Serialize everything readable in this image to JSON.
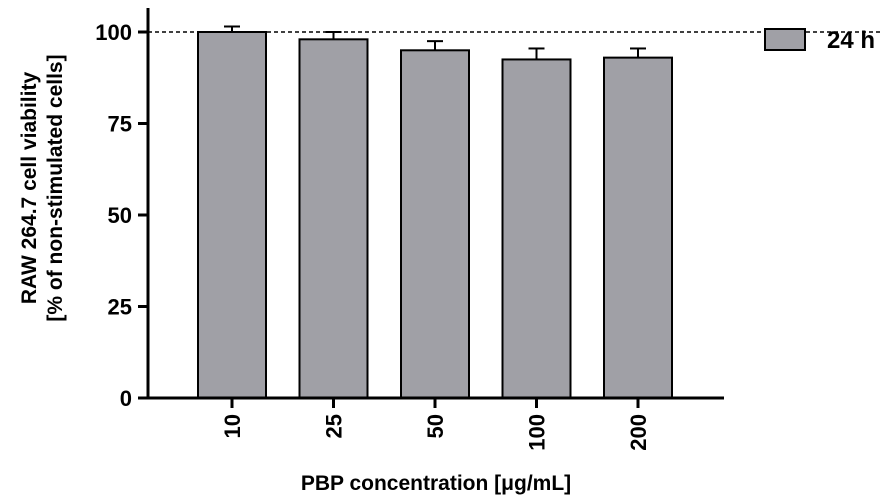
{
  "chart_data": {
    "type": "bar",
    "categories": [
      "10",
      "25",
      "50",
      "100",
      "200"
    ],
    "series": [
      {
        "name": "24 h",
        "values": [
          100,
          98,
          95,
          92.5,
          93
        ],
        "errors": [
          1.5,
          2,
          2.5,
          3,
          2.5
        ]
      }
    ],
    "xlabel": "PBP concentration [μg/mL]",
    "ylabel_line1": "RAW 264.7 cell viability",
    "ylabel_line2": "[% of non-stimulated cells]",
    "ylim": [
      0,
      100
    ],
    "yticks": [
      "0",
      "25",
      "50",
      "75",
      "100"
    ],
    "reference_line": 100,
    "legend_position": "top-right",
    "grid": false,
    "colors": {
      "bar": "#a0a0a6",
      "edge": "#000000"
    }
  }
}
